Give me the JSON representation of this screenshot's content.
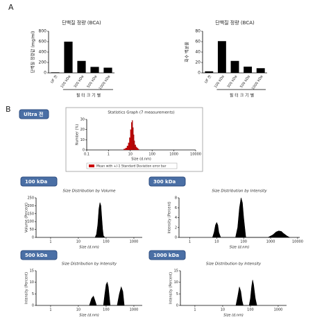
{
  "panels": [
    "A",
    "B"
  ],
  "chart_data": [
    {
      "type": "bar",
      "title": "단백질 정량 (BCA)",
      "ylabel": "단백질 정량값 (mg/ml)",
      "xlabel": "필 터 크 기 별",
      "categories": [
        "UF 전",
        "100 kDa",
        "300 kDa",
        "500 kDa",
        "1000 kDa"
      ],
      "values": [
        10,
        600,
        230,
        115,
        100
      ],
      "color": "#000000",
      "ylim": [
        0,
        800
      ],
      "yticks": [
        0,
        200,
        400,
        600,
        800
      ]
    },
    {
      "type": "bar",
      "title": "단백질 정량 (BCA)",
      "ylabel": "회수 백분율",
      "xlabel": "필 터 크 기 별",
      "categories": [
        "UF 전",
        "100 kDa",
        "300 kDa",
        "500 kDa",
        "1000 kDa"
      ],
      "values": [
        3,
        61,
        23,
        12,
        9
      ],
      "color": "#000000",
      "ylim": [
        0,
        80
      ],
      "yticks": [
        0,
        20,
        40,
        60,
        80
      ]
    },
    {
      "type": "histogram",
      "label": "Ultra 전",
      "title": "Statistics Graph (7 measurements)",
      "ylabel": "Number (%)",
      "xlabel": "Size (d.nm)",
      "xlog": true,
      "xlim": [
        0.1,
        10000
      ],
      "xticks": [
        0.1,
        1,
        10,
        100,
        1000,
        10000
      ],
      "ylim": [
        0,
        30
      ],
      "yticks": [
        0,
        10,
        20,
        30
      ],
      "bins": [
        5,
        6,
        7,
        8,
        9,
        10,
        11,
        12,
        13,
        14,
        15,
        16,
        18,
        20,
        22,
        25
      ],
      "series": [
        {
          "name": "Mean with +/-1 Standard Deviation error bar",
          "color": "#cc0000",
          "values": [
            1,
            2,
            4,
            7,
            12,
            20,
            27,
            29,
            22,
            15,
            9,
            5,
            3,
            2,
            1
          ]
        }
      ]
    },
    {
      "type": "line",
      "label": "100 kDa",
      "title": "Size Distribution by Volume",
      "ylabel": "Volume (Percent)",
      "xlabel": "Size (d.nm)",
      "xlog": true,
      "xlim": [
        0.3,
        2000
      ],
      "xticks": [
        1,
        10,
        100,
        1000
      ],
      "ylim": [
        0,
        250
      ],
      "yticks": [
        0,
        50,
        100,
        150,
        200,
        250
      ],
      "x": [
        40,
        45,
        50,
        55,
        60,
        65,
        70,
        75,
        80,
        90
      ],
      "series": [
        {
          "color": "#000000",
          "values": [
            0,
            20,
            80,
            180,
            220,
            200,
            120,
            50,
            10,
            0
          ]
        }
      ]
    },
    {
      "type": "line",
      "label": "300 kDa",
      "title": "Size Distribution by Intensity",
      "ylabel": "Intensity (Percent)",
      "xlabel": "Size (d.nm)",
      "xlog": true,
      "xlim": [
        0.4,
        12000
      ],
      "xticks": [
        1,
        10,
        100,
        1000,
        10000
      ],
      "ylim": [
        0,
        8
      ],
      "yticks": [
        0,
        2,
        4,
        6,
        8
      ],
      "x": [
        7,
        8,
        9,
        10,
        11,
        12,
        14,
        50,
        60,
        70,
        80,
        90,
        100,
        120,
        800,
        1200,
        1600,
        2000,
        2500,
        3000,
        4000,
        5000
      ],
      "series": [
        {
          "color": "#000000",
          "values": [
            0,
            1,
            2.5,
            3,
            2.5,
            1,
            0,
            0,
            2,
            6,
            8,
            7,
            4,
            0,
            0,
            0.5,
            1.1,
            1.3,
            1.2,
            0.8,
            0.3,
            0
          ]
        }
      ]
    },
    {
      "type": "line",
      "label": "500 kDa",
      "title": "Size Distribution by Intensity",
      "ylabel": "Intensity (Percent)",
      "xlabel": "Size (d.nm)",
      "xlog": true,
      "xlim": [
        0.3,
        2000
      ],
      "xticks": [
        1,
        10,
        100,
        1000
      ],
      "ylim": [
        0,
        15
      ],
      "yticks": [
        0,
        5,
        10,
        15
      ],
      "x": [
        25,
        30,
        35,
        40,
        45,
        80,
        90,
        100,
        110,
        120,
        140,
        250,
        300,
        350,
        400,
        450
      ],
      "series": [
        {
          "color": "#000000",
          "values": [
            0,
            3,
            4,
            2,
            0,
            0,
            5,
            9,
            10,
            8,
            0,
            0,
            5,
            8,
            6,
            0
          ]
        }
      ]
    },
    {
      "type": "line",
      "label": "1000 kDa",
      "title": "Size Distribution by Intensity",
      "ylabel": "Intensity (Percent)",
      "xlabel": "Size (d.nm)",
      "xlog": true,
      "xlim": [
        0.3,
        2000
      ],
      "xticks": [
        1,
        10,
        100,
        1000
      ],
      "ylim": [
        0,
        15
      ],
      "yticks": [
        0,
        5,
        10,
        15
      ],
      "x": [
        30,
        35,
        40,
        45,
        50,
        55,
        90,
        100,
        110,
        120,
        130,
        150,
        170
      ],
      "series": [
        {
          "color": "#000000",
          "values": [
            0,
            4,
            8,
            6,
            2,
            0,
            0,
            3,
            8,
            11,
            9,
            3,
            0
          ]
        }
      ]
    }
  ]
}
